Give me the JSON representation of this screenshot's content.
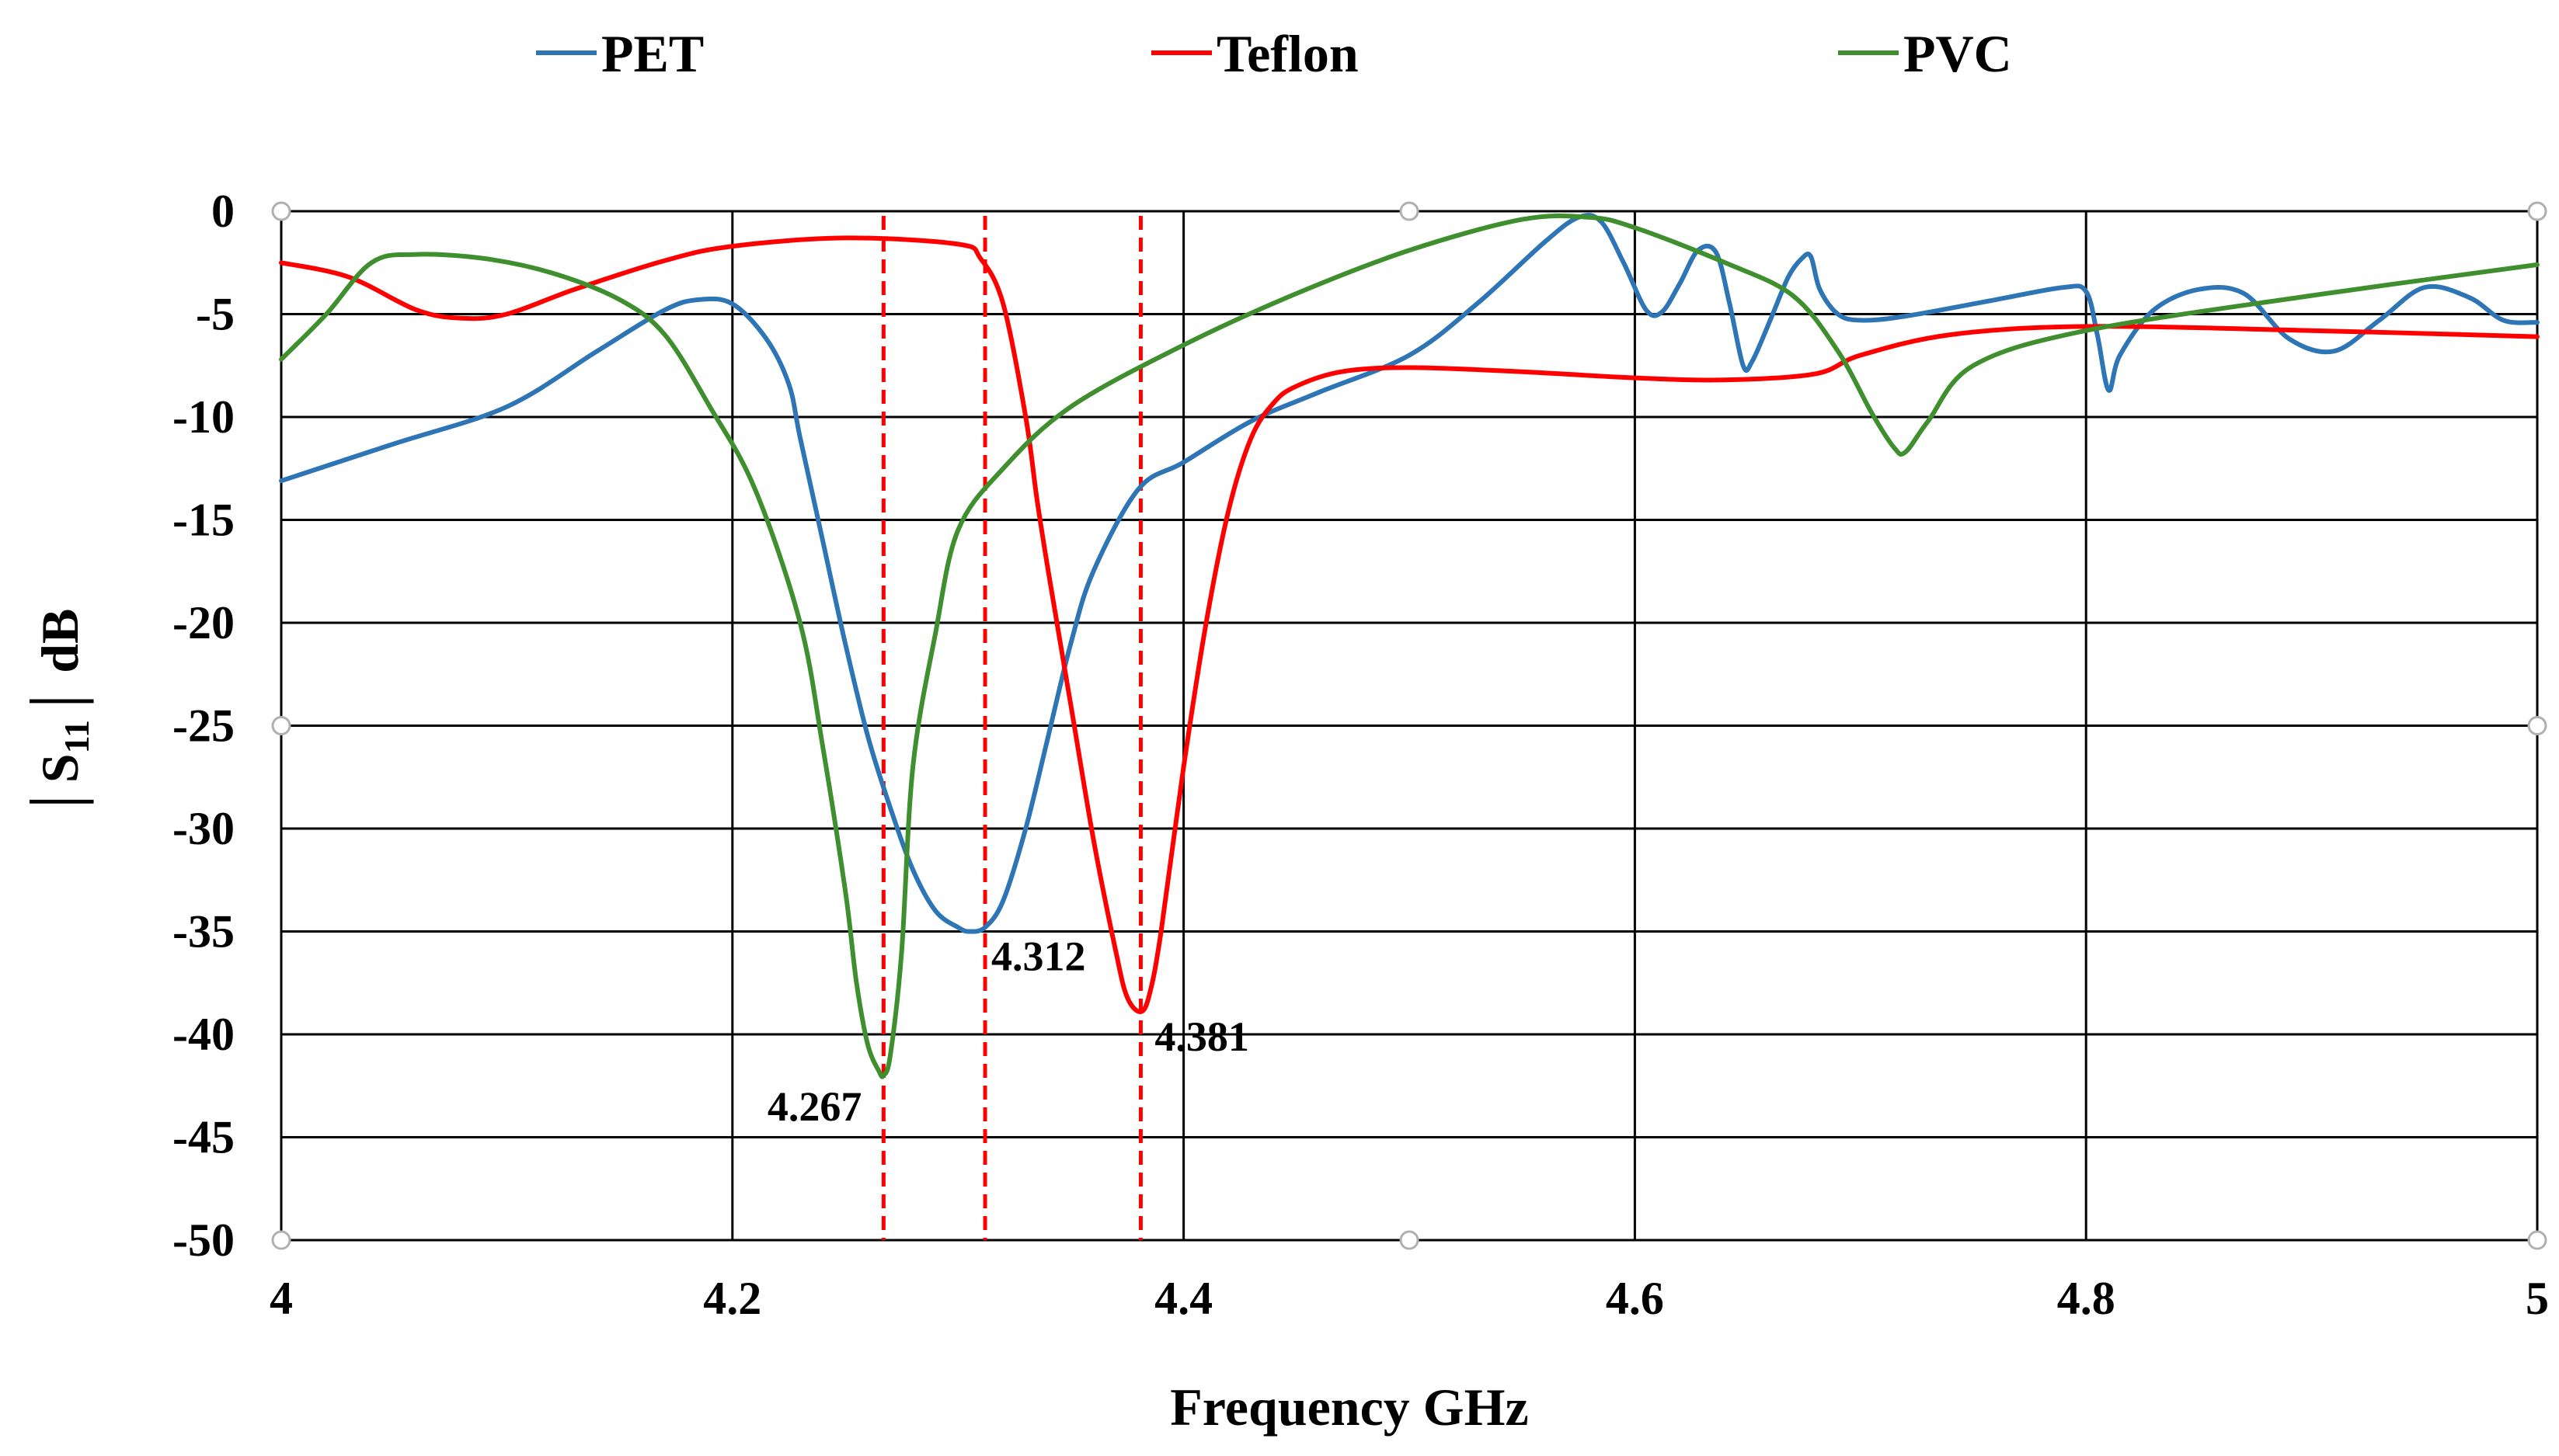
{
  "chart_data": {
    "type": "line",
    "title": "",
    "xlabel": "Frequency GHz",
    "ylabel": "│S11│dB",
    "ylabel_main": "S",
    "ylabel_sub": "11",
    "ylabel_unit": "dB",
    "xlim": [
      4,
      5
    ],
    "ylim": [
      -50,
      0
    ],
    "xticks": [
      4,
      4.2,
      4.4,
      4.6,
      4.8,
      5
    ],
    "xtick_labels": [
      "4",
      "4.2",
      "4.4",
      "4.6",
      "4.8",
      "5"
    ],
    "yticks": [
      0,
      -5,
      -10,
      -15,
      -20,
      -25,
      -30,
      -35,
      -40,
      -45,
      -50
    ],
    "ytick_labels": [
      "0",
      "-5",
      "-10",
      "-15",
      "-20",
      "-25",
      "-30",
      "-35",
      "-40",
      "-45",
      "-50"
    ],
    "grid": true,
    "legend_position": "top",
    "series": [
      {
        "name": "PET",
        "color": "#2e75b6",
        "x": [
          4.0,
          4.05,
          4.1,
          4.14,
          4.17,
          4.185,
          4.2,
          4.215,
          4.225,
          4.23,
          4.24,
          4.25,
          4.26,
          4.27,
          4.28,
          4.29,
          4.3,
          4.305,
          4.312,
          4.32,
          4.33,
          4.34,
          4.35,
          4.36,
          4.38,
          4.4,
          4.43,
          4.46,
          4.5,
          4.53,
          4.56,
          4.575,
          4.585,
          4.595,
          4.605,
          4.612,
          4.62,
          4.628,
          4.636,
          4.642,
          4.648,
          4.652,
          4.66,
          4.668,
          4.674,
          4.678,
          4.682,
          4.69,
          4.7,
          4.72,
          4.76,
          4.79,
          4.8,
          4.805,
          4.81,
          4.815,
          4.83,
          4.85,
          4.87,
          4.89,
          4.91,
          4.93,
          4.95,
          4.97,
          4.985,
          5.0
        ],
        "y": [
          -13.1,
          -11.3,
          -9.5,
          -6.8,
          -4.8,
          -4.3,
          -4.5,
          -6.2,
          -8.4,
          -11.0,
          -16.0,
          -21.0,
          -25.5,
          -29.0,
          -32.0,
          -34.0,
          -34.8,
          -35.0,
          -34.8,
          -33.5,
          -30.0,
          -25.5,
          -21.0,
          -17.5,
          -13.5,
          -12.2,
          -10.2,
          -8.8,
          -7.0,
          -4.5,
          -1.5,
          -0.3,
          -0.5,
          -2.5,
          -4.8,
          -4.9,
          -3.5,
          -1.9,
          -2.0,
          -4.5,
          -7.5,
          -7.3,
          -5.3,
          -3.2,
          -2.3,
          -2.2,
          -3.8,
          -5.0,
          -5.3,
          -5.1,
          -4.3,
          -3.7,
          -3.9,
          -6.0,
          -8.7,
          -7.0,
          -4.8,
          -3.8,
          -4.0,
          -6.2,
          -6.8,
          -5.3,
          -3.7,
          -4.2,
          -5.3,
          -5.4
        ]
      },
      {
        "name": "Teflon",
        "color": "#ff0000",
        "x": [
          4.0,
          4.03,
          4.06,
          4.08,
          4.1,
          4.13,
          4.17,
          4.2,
          4.25,
          4.3,
          4.31,
          4.32,
          4.33,
          4.335,
          4.34,
          4.35,
          4.36,
          4.37,
          4.375,
          4.381,
          4.385,
          4.39,
          4.4,
          4.41,
          4.42,
          4.43,
          4.44,
          4.45,
          4.47,
          4.5,
          4.55,
          4.6,
          4.64,
          4.68,
          4.7,
          4.74,
          4.8,
          4.9,
          5.0
        ],
        "y": [
          -2.5,
          -3.2,
          -4.8,
          -5.2,
          -5.0,
          -3.8,
          -2.4,
          -1.7,
          -1.3,
          -1.6,
          -2.3,
          -4.5,
          -10.0,
          -14.0,
          -17.5,
          -24.0,
          -30.5,
          -36.0,
          -38.2,
          -38.9,
          -38.0,
          -35.0,
          -27.0,
          -20.0,
          -14.5,
          -11.0,
          -9.3,
          -8.5,
          -7.8,
          -7.6,
          -7.8,
          -8.1,
          -8.2,
          -7.9,
          -7.0,
          -6.0,
          -5.6,
          -5.8,
          -6.1
        ]
      },
      {
        "name": "PVC",
        "color": "#3f8f2f",
        "x": [
          4.0,
          4.02,
          4.04,
          4.06,
          4.09,
          4.12,
          4.15,
          4.17,
          4.19,
          4.21,
          4.23,
          4.24,
          4.25,
          4.255,
          4.26,
          4.265,
          4.267,
          4.27,
          4.275,
          4.28,
          4.29,
          4.3,
          4.32,
          4.35,
          4.4,
          4.45,
          4.5,
          4.55,
          4.58,
          4.6,
          4.64,
          4.67,
          4.69,
          4.705,
          4.715,
          4.72,
          4.73,
          4.75,
          4.8,
          4.9,
          5.0
        ],
        "y": [
          -7.2,
          -5.0,
          -2.5,
          -2.1,
          -2.3,
          -3.0,
          -4.3,
          -6.0,
          -9.5,
          -13.5,
          -20.0,
          -26.0,
          -33.0,
          -37.5,
          -40.5,
          -41.8,
          -42.0,
          -41.0,
          -36.0,
          -27.0,
          -20.5,
          -15.5,
          -12.5,
          -9.5,
          -6.5,
          -4.0,
          -1.9,
          -0.4,
          -0.3,
          -0.8,
          -2.5,
          -4.1,
          -6.8,
          -9.8,
          -11.5,
          -11.7,
          -10.2,
          -7.5,
          -5.8,
          -4.1,
          -2.6
        ]
      }
    ],
    "markers": [
      {
        "x": 4.267,
        "label": "4.267"
      },
      {
        "x": 4.312,
        "label": "4.312"
      },
      {
        "x": 4.381,
        "label": "4.381"
      }
    ]
  }
}
